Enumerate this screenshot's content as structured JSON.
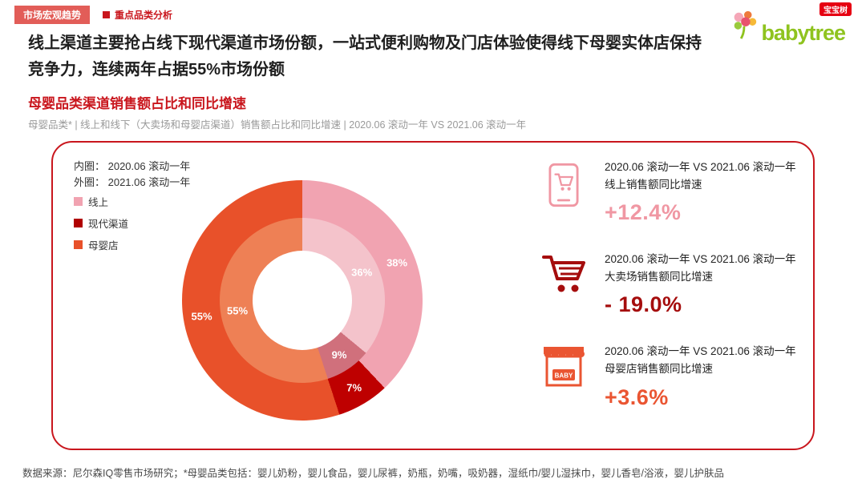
{
  "header": {
    "tab1": "市场宏观趋势",
    "tab2": "重点品类分析",
    "logo_text": "babytree",
    "logo_badge": "宝宝树"
  },
  "title": "线上渠道主要抢占线下现代渠道市场份额，一站式便利购物及门店体验使得线下母婴实体店保持竞争力，连续两年占据55%市场份额",
  "section": {
    "heading": "母婴品类渠道销售额占比和同比增速",
    "subheading": "母婴品类* | 线上和线下（大卖场和母婴店渠道）销售额占比和同比增速 | 2020.06 滚动一年 VS 2021.06 滚动一年"
  },
  "chart_data": {
    "type": "donut",
    "title": "母婴品类渠道销售额占比和同比增速",
    "ring_note_inner": "内圈： 2020.06 滚动一年",
    "ring_note_outer": "外圈： 2021.06 滚动一年",
    "categories": [
      "线上",
      "现代渠道",
      "母婴店"
    ],
    "legend_colors": [
      "#F1A3B1",
      "#B00000",
      "#E8512A"
    ],
    "legend_position": "left",
    "rings": [
      {
        "name": "内圈 2020.06 滚动一年",
        "values": [
          36,
          9,
          55
        ],
        "colors": [
          "#F4C3CB",
          "#D0707C",
          "#EE8055"
        ]
      },
      {
        "name": "外圈 2021.06 滚动一年",
        "values": [
          38,
          7,
          55
        ],
        "colors": [
          "#F1A3B1",
          "#BE0000",
          "#E8512A"
        ]
      }
    ]
  },
  "stats": [
    {
      "compare": "2020.06 滚动一年 VS 2021.06 滚动一年",
      "label": "线上销售额同比增速",
      "value": "+12.4%",
      "color": "#F097A3"
    },
    {
      "compare": "2020.06 滚动一年 VS 2021.06 滚动一年",
      "label": "大卖场销售额同比增速",
      "value": "- 19.0%",
      "color": "#A50D0D"
    },
    {
      "compare": "2020.06 滚动一年 VS 2021.06 滚动一年",
      "label": "母婴店销售额同比增速",
      "value": "+3.6%",
      "color": "#EA5532"
    }
  ],
  "footer": {
    "source": "数据来源：尼尔森IQ零售市场研究；*母婴品类包括：婴儿奶粉，婴儿食品，婴儿尿裤，奶瓶，奶嘴，吸奶器，湿纸巾/婴儿湿抹巾，婴儿香皂/浴液，婴儿护肤品"
  }
}
